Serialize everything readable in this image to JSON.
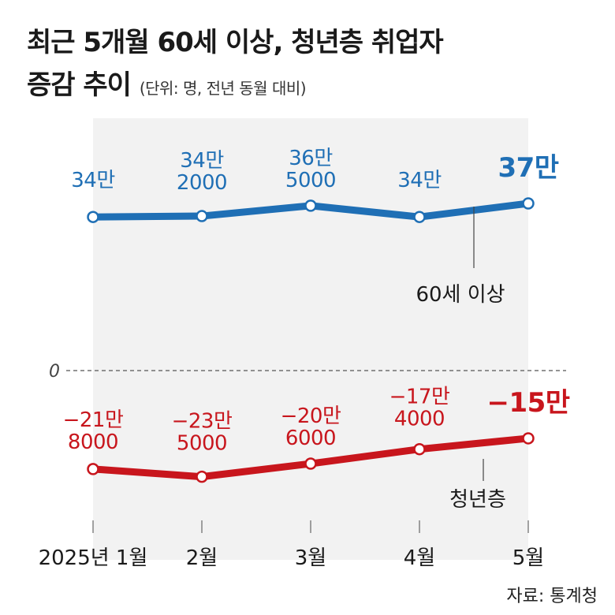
{
  "title": {
    "line1": "최근 5개월 60세 이상, 청년층 취업자",
    "line2": "증감 추이",
    "unit": "(단위: 명, 전년 동월 대비)"
  },
  "source": "자료: 통계청",
  "colors": {
    "older": "#1f6fb5",
    "youth": "#c8161d",
    "text": "#1a1a1a"
  },
  "chart_data": {
    "type": "line",
    "categories": [
      "2025년 1월",
      "2월",
      "3월",
      "4월",
      "5월"
    ],
    "zero_label": "0",
    "series": [
      {
        "name": "60세 이상",
        "values": [
          340000,
          342000,
          365000,
          340000,
          370000
        ],
        "labels": [
          [
            "34만"
          ],
          [
            "34만",
            "2000"
          ],
          [
            "36만",
            "5000"
          ],
          [
            "34만"
          ],
          [
            "37만"
          ]
        ]
      },
      {
        "name": "청년층",
        "values": [
          -218000,
          -235000,
          -206000,
          -174000,
          -150000
        ],
        "labels": [
          [
            "−21만",
            "8000"
          ],
          [
            "−23만",
            "5000"
          ],
          [
            "−20만",
            "6000"
          ],
          [
            "−17만",
            "4000"
          ],
          [
            "−15만"
          ]
        ]
      }
    ]
  }
}
